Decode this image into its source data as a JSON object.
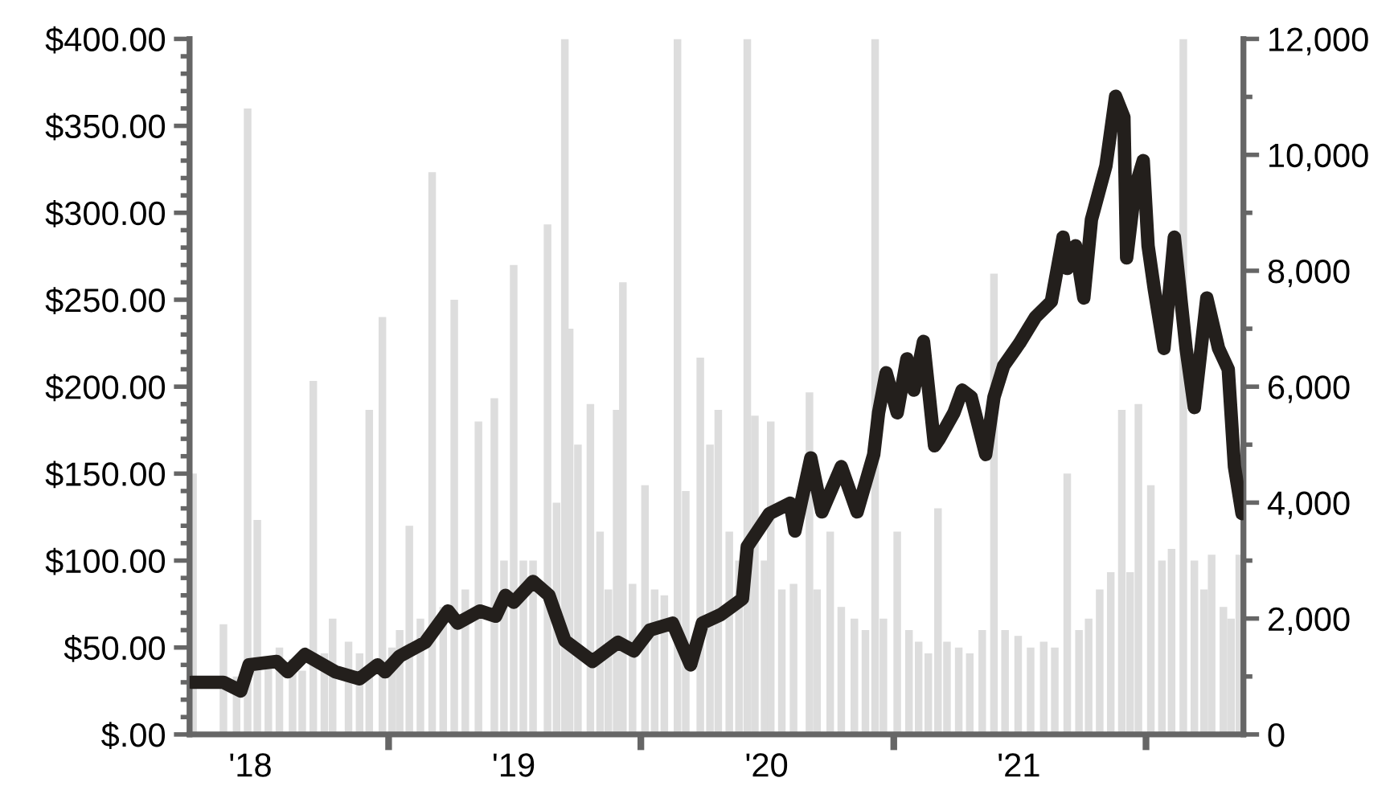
{
  "chart_data": {
    "type": "line",
    "xlim": [
      "2018-03-19",
      "2022-05-22"
    ],
    "xticks": [
      {
        "value": "2018-06-15",
        "label": "'18"
      },
      {
        "value": "2019-01-01",
        "label": null
      },
      {
        "value": "2019-07-01",
        "label": "'19"
      },
      {
        "value": "2020-01-01",
        "label": null
      },
      {
        "value": "2020-07-01",
        "label": "'20"
      },
      {
        "value": "2021-01-01",
        "label": null
      },
      {
        "value": "2021-07-01",
        "label": "'21"
      },
      {
        "value": "2022-01-01",
        "label": null
      }
    ],
    "ylim": [
      0,
      400
    ],
    "yticks": [
      {
        "value": 0,
        "label": "$.00"
      },
      {
        "value": 10,
        "label": null
      },
      {
        "value": 20,
        "label": null
      },
      {
        "value": 30,
        "label": null
      },
      {
        "value": 40,
        "label": null
      },
      {
        "value": 50,
        "label": "$50.00"
      },
      {
        "value": 60,
        "label": null
      },
      {
        "value": 70,
        "label": null
      },
      {
        "value": 80,
        "label": null
      },
      {
        "value": 90,
        "label": null
      },
      {
        "value": 100,
        "label": "$100.00"
      },
      {
        "value": 110,
        "label": null
      },
      {
        "value": 120,
        "label": null
      },
      {
        "value": 130,
        "label": null
      },
      {
        "value": 140,
        "label": null
      },
      {
        "value": 150,
        "label": "$150.00"
      },
      {
        "value": 160,
        "label": null
      },
      {
        "value": 170,
        "label": null
      },
      {
        "value": 180,
        "label": null
      },
      {
        "value": 190,
        "label": null
      },
      {
        "value": 200,
        "label": "$200.00"
      },
      {
        "value": 210,
        "label": null
      },
      {
        "value": 220,
        "label": null
      },
      {
        "value": 230,
        "label": null
      },
      {
        "value": 240,
        "label": null
      },
      {
        "value": 250,
        "label": "$250.00"
      },
      {
        "value": 260,
        "label": null
      },
      {
        "value": 270,
        "label": null
      },
      {
        "value": 280,
        "label": null
      },
      {
        "value": 290,
        "label": null
      },
      {
        "value": 300,
        "label": "$300.00"
      },
      {
        "value": 310,
        "label": null
      },
      {
        "value": 320,
        "label": null
      },
      {
        "value": 330,
        "label": null
      },
      {
        "value": 340,
        "label": null
      },
      {
        "value": 350,
        "label": "$350.00"
      },
      {
        "value": 360,
        "label": null
      },
      {
        "value": 370,
        "label": null
      },
      {
        "value": 380,
        "label": null
      },
      {
        "value": 390,
        "label": null
      },
      {
        "value": 400,
        "label": "$400.00"
      }
    ],
    "y2lim": [
      0,
      12000
    ],
    "y2ticks": [
      0,
      {
        "value": 1000,
        "label": null
      },
      {
        "value": 2000,
        "label": "2,000"
      },
      {
        "value": 3000,
        "label": null
      },
      {
        "value": 4000,
        "label": "4,000"
      },
      {
        "value": 5000,
        "label": null
      },
      {
        "value": 6000,
        "label": "6,000"
      },
      {
        "value": 7000,
        "label": null
      },
      {
        "value": 8000,
        "label": "8,000"
      },
      {
        "value": 9000,
        "label": null
      },
      {
        "value": 10000,
        "label": "10,000"
      },
      {
        "value": 11000,
        "label": null
      },
      {
        "value": 12000,
        "label": "12,000"
      }
    ],
    "series": [
      {
        "type": "bar",
        "axis": "y2",
        "color": "#dddddd",
        "x": [
          "2018-03-24",
          "2018-04-09",
          "2018-04-23",
          "2018-05-07",
          "2018-05-26",
          "2018-06-11",
          "2018-06-25",
          "2018-07-11",
          "2018-07-27",
          "2018-08-15",
          "2018-08-29",
          "2018-09-14",
          "2018-09-30",
          "2018-10-12",
          "2018-11-04",
          "2018-11-20",
          "2018-12-04",
          "2018-12-23",
          "2019-01-06",
          "2019-01-17",
          "2019-01-31",
          "2019-02-16",
          "2019-03-05",
          "2019-03-21",
          "2019-04-06",
          "2019-04-22",
          "2019-05-11",
          "2019-06-03",
          "2019-06-17",
          "2019-07-01",
          "2019-07-15",
          "2019-07-29",
          "2019-08-19",
          "2019-09-01",
          "2019-09-13",
          "2019-09-20",
          "2019-10-02",
          "2019-10-20",
          "2019-11-03",
          "2019-11-15",
          "2019-11-27",
          "2019-12-06",
          "2019-12-20",
          "2020-01-07",
          "2020-01-21",
          "2020-02-04",
          "2020-02-23",
          "2020-03-06",
          "2020-03-27",
          "2020-04-10",
          "2020-04-22",
          "2020-05-08",
          "2020-05-22",
          "2020-06-03",
          "2020-06-14",
          "2020-06-28",
          "2020-07-07",
          "2020-07-23",
          "2020-08-09",
          "2020-09-01",
          "2020-09-12",
          "2020-10-01",
          "2020-10-17",
          "2020-11-05",
          "2020-11-21",
          "2020-12-05",
          "2020-12-17",
          "2021-01-06",
          "2021-01-23",
          "2021-02-06",
          "2021-02-20",
          "2021-03-06",
          "2021-03-19",
          "2021-04-05",
          "2021-04-21",
          "2021-05-09",
          "2021-05-26",
          "2021-06-11",
          "2021-06-30",
          "2021-07-18",
          "2021-08-06",
          "2021-08-22",
          "2021-09-09",
          "2021-09-26",
          "2021-10-10",
          "2021-10-26",
          "2021-11-11",
          "2021-11-27",
          "2021-12-09",
          "2021-12-21",
          "2022-01-08",
          "2022-01-24",
          "2022-02-07",
          "2022-02-24",
          "2022-03-12",
          "2022-03-26",
          "2022-04-06",
          "2022-04-23",
          "2022-05-04",
          "2022-05-16"
        ],
        "values": [
          4500,
          null,
          null,
          1900,
          1000,
          10800,
          3700,
          1200,
          1500,
          1300,
          1100,
          6100,
          1400,
          2000,
          1600,
          1400,
          5600,
          7200,
          1500,
          1800,
          3600,
          2000,
          9700,
          2200,
          7500,
          2500,
          5400,
          5800,
          3000,
          8100,
          3000,
          3000,
          8800,
          4000,
          12000,
          7000,
          5000,
          5700,
          3500,
          2500,
          5600,
          7800,
          2600,
          4300,
          2500,
          2400,
          12000,
          4200,
          6500,
          5000,
          5600,
          3500,
          3000,
          12000,
          5500,
          3000,
          5400,
          2500,
          2600,
          5900,
          2500,
          3500,
          2200,
          2000,
          1800,
          12000,
          2000,
          3500,
          1800,
          1600,
          1400,
          3900,
          1600,
          1500,
          1400,
          1800,
          7950,
          1800,
          1700,
          1500,
          1600,
          1500,
          4500,
          1800,
          2000,
          2500,
          2800,
          5600,
          2800,
          5700,
          4300,
          3000,
          3200,
          12000,
          3000,
          2500,
          3100,
          2200,
          2000,
          3100
        ]
      },
      {
        "color": "#231f1c",
        "x": [
          "2018-03-22",
          "2018-05-07",
          "2018-06-01",
          "2018-06-13",
          "2018-07-23",
          "2018-08-08",
          "2018-09-02",
          "2018-10-16",
          "2018-11-20",
          "2018-12-16",
          "2018-12-27",
          "2019-01-17",
          "2019-02-23",
          "2019-03-28",
          "2019-04-11",
          "2019-05-13",
          "2019-06-05",
          "2019-06-19",
          "2019-07-01",
          "2019-07-29",
          "2019-08-21",
          "2019-09-13",
          "2019-10-23",
          "2019-11-29",
          "2019-12-22",
          "2020-01-14",
          "2020-02-16",
          "2020-03-13",
          "2020-03-30",
          "2020-04-26",
          "2020-05-27",
          "2020-06-03",
          "2020-07-05",
          "2020-08-04",
          "2020-08-11",
          "2020-09-03",
          "2020-09-19",
          "2020-10-17",
          "2020-11-09",
          "2020-12-03",
          "2020-12-10",
          "2020-12-21",
          "2021-01-06",
          "2021-01-20",
          "2021-01-30",
          "2021-02-13",
          "2021-03-01",
          "2021-03-08",
          "2021-03-29",
          "2021-04-10",
          "2021-04-23",
          "2021-05-14",
          "2021-05-26",
          "2021-06-09",
          "2021-07-02",
          "2021-07-25",
          "2021-08-17",
          "2021-09-03",
          "2021-09-09",
          "2021-09-21",
          "2021-10-03",
          "2021-10-14",
          "2021-11-04",
          "2021-11-18",
          "2021-11-30",
          "2021-12-04",
          "2021-12-16",
          "2021-12-28",
          "2022-01-04",
          "2022-01-13",
          "2022-01-27",
          "2022-02-11",
          "2022-02-28",
          "2022-03-12",
          "2022-03-30",
          "2022-04-16",
          "2022-04-30",
          "2022-05-09",
          "2022-05-20"
        ],
        "values": [
          30,
          30,
          25,
          40,
          42,
          36,
          46,
          36,
          32,
          40,
          36,
          45,
          53,
          71,
          64,
          71,
          68,
          80,
          76,
          88,
          80,
          54,
          42,
          53,
          48,
          60,
          64,
          40,
          64,
          69,
          78,
          108,
          127,
          133,
          117,
          159,
          128,
          154,
          128,
          161,
          185,
          208,
          185,
          216,
          198,
          226,
          166,
          170,
          185,
          198,
          194,
          161,
          194,
          212,
          225,
          240,
          249,
          286,
          268,
          281,
          251,
          296,
          327,
          367,
          355,
          274,
          314,
          330,
          281,
          256,
          222,
          286,
          222,
          188,
          251,
          222,
          210,
          154,
          127
        ]
      }
    ]
  }
}
